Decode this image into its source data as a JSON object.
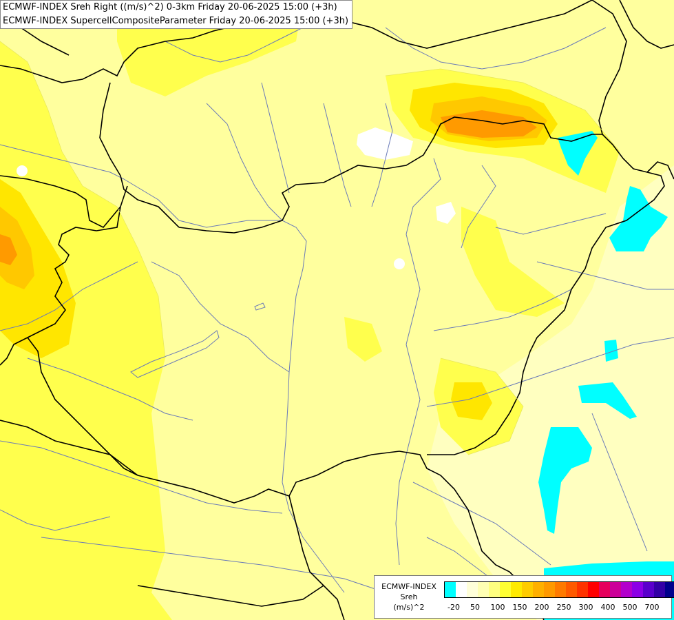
{
  "header": {
    "line1": "ECMWF-INDEX Sreh Right ((m/s)^2) 0-3km Friday 20-06-2025 15:00 (+3h)",
    "line2": "ECMWF-INDEX SupercellCompositeParameter Friday 20-06-2025 15:00 (+3h)"
  },
  "legend": {
    "source": "ECMWF-INDEX",
    "variable": "Sreh",
    "unit": "(m/s)^2",
    "colors": [
      "#00ffff",
      "#ffffff",
      "#ffffd9",
      "#ffffb3",
      "#ffff80",
      "#ffff33",
      "#ffea00",
      "#ffcc00",
      "#ffb000",
      "#ff9900",
      "#ff7a00",
      "#ff5a00",
      "#ff3300",
      "#ff0000",
      "#e6005c",
      "#cc0099",
      "#b300cc",
      "#8c00e6",
      "#5a00cc",
      "#3300a6",
      "#00008c"
    ],
    "ticks": [
      "-20",
      "50",
      "100",
      "150",
      "200",
      "250",
      "300",
      "400",
      "500",
      "700"
    ]
  },
  "palette": {
    "background": "#ffffc0",
    "pale_yellow": "#ffff9e",
    "yellow": "#ffff4d",
    "gold": "#ffe600",
    "amber": "#ffc800",
    "orange": "#ff9a00",
    "cyan": "#00ffff",
    "border": "#000000",
    "river": "#6a7ab8"
  }
}
